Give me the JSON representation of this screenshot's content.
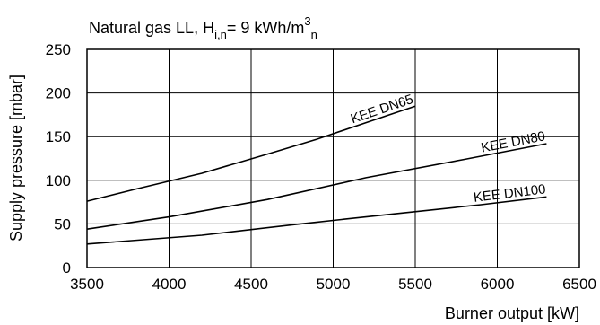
{
  "chart_data": {
    "type": "line",
    "title": {
      "main": "Natural gas LL, H",
      "sub1": "i,n",
      "mid": "= 9 kWh/m",
      "sup": "3",
      "sub2": "n"
    },
    "xlabel": "Burner output [kW]",
    "ylabel": "Supply pressure [mbar]",
    "xlim": [
      3500,
      6500
    ],
    "ylim": [
      0,
      250
    ],
    "xticks": [
      3500,
      4000,
      4500,
      5000,
      5500,
      6000,
      6500
    ],
    "yticks": [
      0,
      50,
      100,
      150,
      200,
      250
    ],
    "grid": true,
    "series": [
      {
        "name": "KEE DN65",
        "points": [
          [
            3500,
            76
          ],
          [
            3800,
            90
          ],
          [
            4200,
            108
          ],
          [
            4600,
            130
          ],
          [
            4900,
            147
          ],
          [
            5200,
            166
          ],
          [
            5500,
            185
          ]
        ]
      },
      {
        "name": "KEE DN80",
        "points": [
          [
            3500,
            44
          ],
          [
            4000,
            58
          ],
          [
            4600,
            78
          ],
          [
            5200,
            103
          ],
          [
            5800,
            124
          ],
          [
            6300,
            142
          ]
        ]
      },
      {
        "name": "KEE DN100",
        "points": [
          [
            3500,
            27
          ],
          [
            4200,
            37
          ],
          [
            4800,
            50
          ],
          [
            5400,
            62
          ],
          [
            5900,
            72
          ],
          [
            6300,
            81
          ]
        ]
      }
    ]
  }
}
